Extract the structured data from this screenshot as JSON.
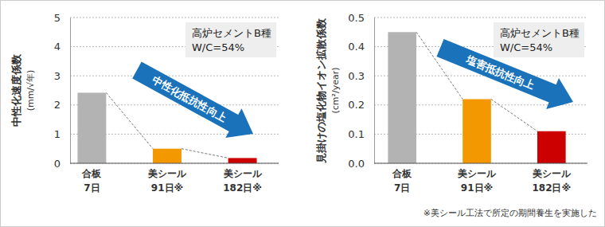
{
  "chart_data": [
    {
      "type": "bar",
      "y_label": "中性化速度係数",
      "y_unit": "(mm/√年)",
      "categories": [
        "合板\n7日",
        "美シール\n91日※",
        "美シール\n182日※"
      ],
      "values": [
        2.42,
        0.5,
        0.18
      ],
      "colors": [
        "#b3b3b3",
        "#f39800",
        "#cc0000"
      ],
      "ylim": [
        0,
        5
      ],
      "yticks": [
        0,
        1,
        2,
        3,
        4,
        5
      ],
      "grid": true,
      "note": [
        "高炉セメントB種",
        "W/C=54%"
      ],
      "arrow_label": "中性化抵抗性向上"
    },
    {
      "type": "bar",
      "y_label": "見掛けの塩化物イオン拡散係数",
      "y_unit": "(cm²/year)",
      "categories": [
        "合板\n7日",
        "美シール\n91日※",
        "美シール\n182日※"
      ],
      "values": [
        0.45,
        0.22,
        0.11
      ],
      "colors": [
        "#b3b3b3",
        "#f39800",
        "#cc0000"
      ],
      "ylim": [
        0,
        0.5
      ],
      "yticks": [
        {
          "value": 0,
          "label": "0.0"
        },
        0.1,
        0.2,
        0.3,
        0.4,
        0.5
      ],
      "grid": true,
      "note": [
        "高炉セメントB種",
        "W/C=54%"
      ],
      "arrow_label": "塩害抵抗性向上"
    }
  ],
  "footnote": "※美シール工法で所定の期間養生を実施した"
}
